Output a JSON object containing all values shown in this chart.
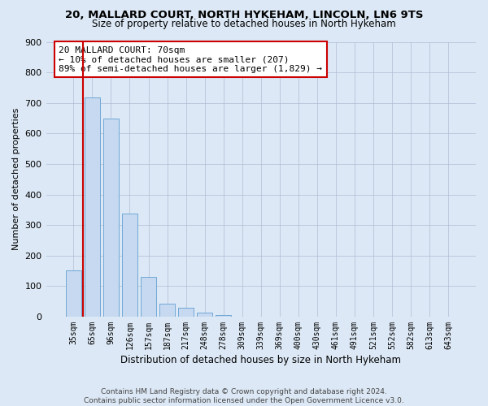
{
  "title": "20, MALLARD COURT, NORTH HYKEHAM, LINCOLN, LN6 9TS",
  "subtitle": "Size of property relative to detached houses in North Hykeham",
  "xlabel": "Distribution of detached houses by size in North Hykeham",
  "ylabel": "Number of detached properties",
  "footer_line1": "Contains HM Land Registry data © Crown copyright and database right 2024.",
  "footer_line2": "Contains public sector information licensed under the Open Government Licence v3.0.",
  "bar_labels": [
    "35sqm",
    "65sqm",
    "96sqm",
    "126sqm",
    "157sqm",
    "187sqm",
    "217sqm",
    "248sqm",
    "278sqm",
    "309sqm",
    "339sqm",
    "369sqm",
    "400sqm",
    "430sqm",
    "461sqm",
    "491sqm",
    "521sqm",
    "552sqm",
    "582sqm",
    "613sqm",
    "643sqm"
  ],
  "bar_values": [
    152,
    718,
    650,
    338,
    130,
    43,
    30,
    13,
    5,
    0,
    0,
    0,
    0,
    0,
    0,
    0,
    0,
    0,
    0,
    0,
    0
  ],
  "bar_color": "#c7d9f0",
  "bar_edge_color": "#6fa8d6",
  "ylim": [
    0,
    900
  ],
  "yticks": [
    0,
    100,
    200,
    300,
    400,
    500,
    600,
    700,
    800,
    900
  ],
  "vline_x": 0.5,
  "vline_color": "#cc0000",
  "annotation_title": "20 MALLARD COURT: 70sqm",
  "annotation_line1": "← 10% of detached houses are smaller (207)",
  "annotation_line2": "89% of semi-detached houses are larger (1,829) →",
  "annotation_box_color": "#ffffff",
  "annotation_box_edge_color": "#cc0000",
  "background_color": "#dce8f5"
}
